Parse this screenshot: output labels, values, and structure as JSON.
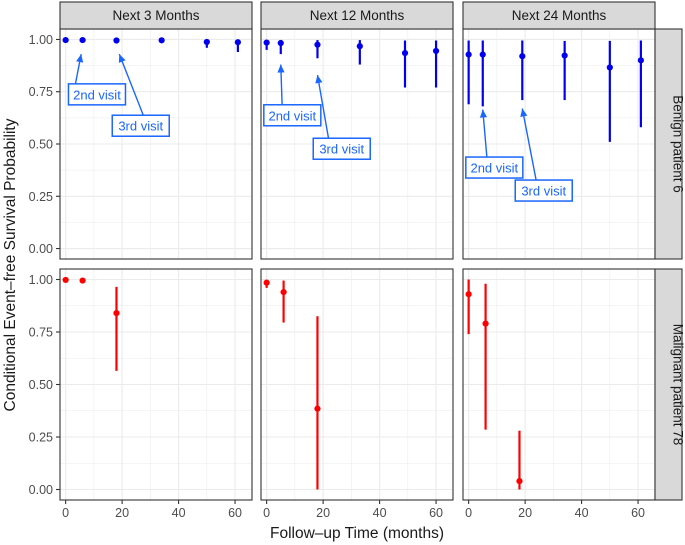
{
  "chart_data": {
    "type": "scatter",
    "subtype": "pointrange-facet-grid",
    "xlabel": "Follow–up Time (months)",
    "ylabel": "Conditional Event–free Survival Probability",
    "xlim": [
      -2,
      66
    ],
    "ylim": [
      -0.05,
      1.05
    ],
    "x_ticks": [
      0,
      20,
      40,
      60
    ],
    "y_ticks": [
      0.0,
      0.25,
      0.5,
      0.75,
      1.0
    ],
    "x_tick_labels": [
      "0",
      "20",
      "40",
      "60"
    ],
    "y_tick_labels": [
      "0.00",
      "0.25",
      "0.50",
      "0.75",
      "1.00"
    ],
    "grid": true,
    "legend": "none",
    "columns": [
      "Next 3 Months",
      "Next 12 Months",
      "Next 24 Months"
    ],
    "rows": [
      {
        "label": "Benign patient 6",
        "color": "#0000ee"
      },
      {
        "label": "Malignant patient 78",
        "color": "#ff0000"
      }
    ],
    "series": [
      {
        "row": "Benign patient 6",
        "column": "Next 3 Months",
        "points": [
          {
            "x": 0,
            "y": 0.997,
            "lower": 0.995,
            "upper": 1.0
          },
          {
            "x": 6,
            "y": 0.997,
            "lower": 0.995,
            "upper": 1.0
          },
          {
            "x": 18,
            "y": 0.995,
            "lower": 0.99,
            "upper": 1.0
          },
          {
            "x": 34,
            "y": 0.996,
            "lower": 0.99,
            "upper": 1.0
          },
          {
            "x": 50,
            "y": 0.988,
            "lower": 0.96,
            "upper": 0.997
          },
          {
            "x": 61,
            "y": 0.987,
            "lower": 0.94,
            "upper": 0.997
          }
        ]
      },
      {
        "row": "Benign patient 6",
        "column": "Next 12 Months",
        "points": [
          {
            "x": 0,
            "y": 0.985,
            "lower": 0.95,
            "upper": 0.997
          },
          {
            "x": 5,
            "y": 0.983,
            "lower": 0.93,
            "upper": 0.997
          },
          {
            "x": 18,
            "y": 0.975,
            "lower": 0.91,
            "upper": 0.997
          },
          {
            "x": 33,
            "y": 0.968,
            "lower": 0.88,
            "upper": 0.997
          },
          {
            "x": 49,
            "y": 0.935,
            "lower": 0.77,
            "upper": 0.995
          },
          {
            "x": 60,
            "y": 0.945,
            "lower": 0.77,
            "upper": 0.995
          }
        ]
      },
      {
        "row": "Benign patient 6",
        "column": "Next 24 Months",
        "points": [
          {
            "x": 0,
            "y": 0.928,
            "lower": 0.69,
            "upper": 0.995
          },
          {
            "x": 5,
            "y": 0.928,
            "lower": 0.68,
            "upper": 0.995
          },
          {
            "x": 19,
            "y": 0.92,
            "lower": 0.71,
            "upper": 0.995
          },
          {
            "x": 34,
            "y": 0.923,
            "lower": 0.71,
            "upper": 0.993
          },
          {
            "x": 50,
            "y": 0.866,
            "lower": 0.51,
            "upper": 0.993
          },
          {
            "x": 61,
            "y": 0.9,
            "lower": 0.58,
            "upper": 0.995
          }
        ]
      },
      {
        "row": "Malignant patient 78",
        "column": "Next 3 Months",
        "points": [
          {
            "x": 0,
            "y": 0.998,
            "lower": 0.995,
            "upper": 1.0
          },
          {
            "x": 6,
            "y": 0.995,
            "lower": 0.99,
            "upper": 1.0
          },
          {
            "x": 18,
            "y": 0.84,
            "lower": 0.565,
            "upper": 0.965
          }
        ]
      },
      {
        "row": "Malignant patient 78",
        "column": "Next 12 Months",
        "points": [
          {
            "x": 0,
            "y": 0.985,
            "lower": 0.96,
            "upper": 0.995
          },
          {
            "x": 6,
            "y": 0.94,
            "lower": 0.795,
            "upper": 0.995
          },
          {
            "x": 18,
            "y": 0.385,
            "lower": 0.0,
            "upper": 0.825
          }
        ]
      },
      {
        "row": "Malignant patient 78",
        "column": "Next 24 Months",
        "points": [
          {
            "x": 0,
            "y": 0.93,
            "lower": 0.74,
            "upper": 1.0
          },
          {
            "x": 6,
            "y": 0.79,
            "lower": 0.285,
            "upper": 0.98
          },
          {
            "x": 18,
            "y": 0.04,
            "lower": 0.0,
            "upper": 0.28
          }
        ]
      }
    ],
    "annotations": [
      {
        "row": 0,
        "col": 0,
        "label": "2nd visit",
        "arrow_from": [
          3.5,
          0.79
        ],
        "arrow_to": [
          5.5,
          0.93
        ],
        "box_x": 1.0,
        "box_y": 0.735
      },
      {
        "row": 0,
        "col": 0,
        "label": "3rd visit",
        "arrow_from": [
          28,
          0.62
        ],
        "arrow_to": [
          19,
          0.93
        ],
        "box_x": 16.5,
        "box_y": 0.585
      },
      {
        "row": 0,
        "col": 1,
        "label": "2nd visit",
        "arrow_from": [
          5.5,
          0.68
        ],
        "arrow_to": [
          5,
          0.88
        ],
        "box_x": -1.0,
        "box_y": 0.635
      },
      {
        "row": 0,
        "col": 1,
        "label": "3rd visit",
        "arrow_from": [
          22,
          0.52
        ],
        "arrow_to": [
          18,
          0.83
        ],
        "box_x": 16.5,
        "box_y": 0.475
      },
      {
        "row": 0,
        "col": 2,
        "label": "2nd visit",
        "arrow_from": [
          6.5,
          0.43
        ],
        "arrow_to": [
          5,
          0.665
        ],
        "box_x": -1.0,
        "box_y": 0.385
      },
      {
        "row": 0,
        "col": 2,
        "label": "3rd visit",
        "arrow_from": [
          24,
          0.32
        ],
        "arrow_to": [
          19,
          0.67
        ],
        "box_x": 16.5,
        "box_y": 0.275
      }
    ],
    "annotation_color": "#1a66ff"
  }
}
